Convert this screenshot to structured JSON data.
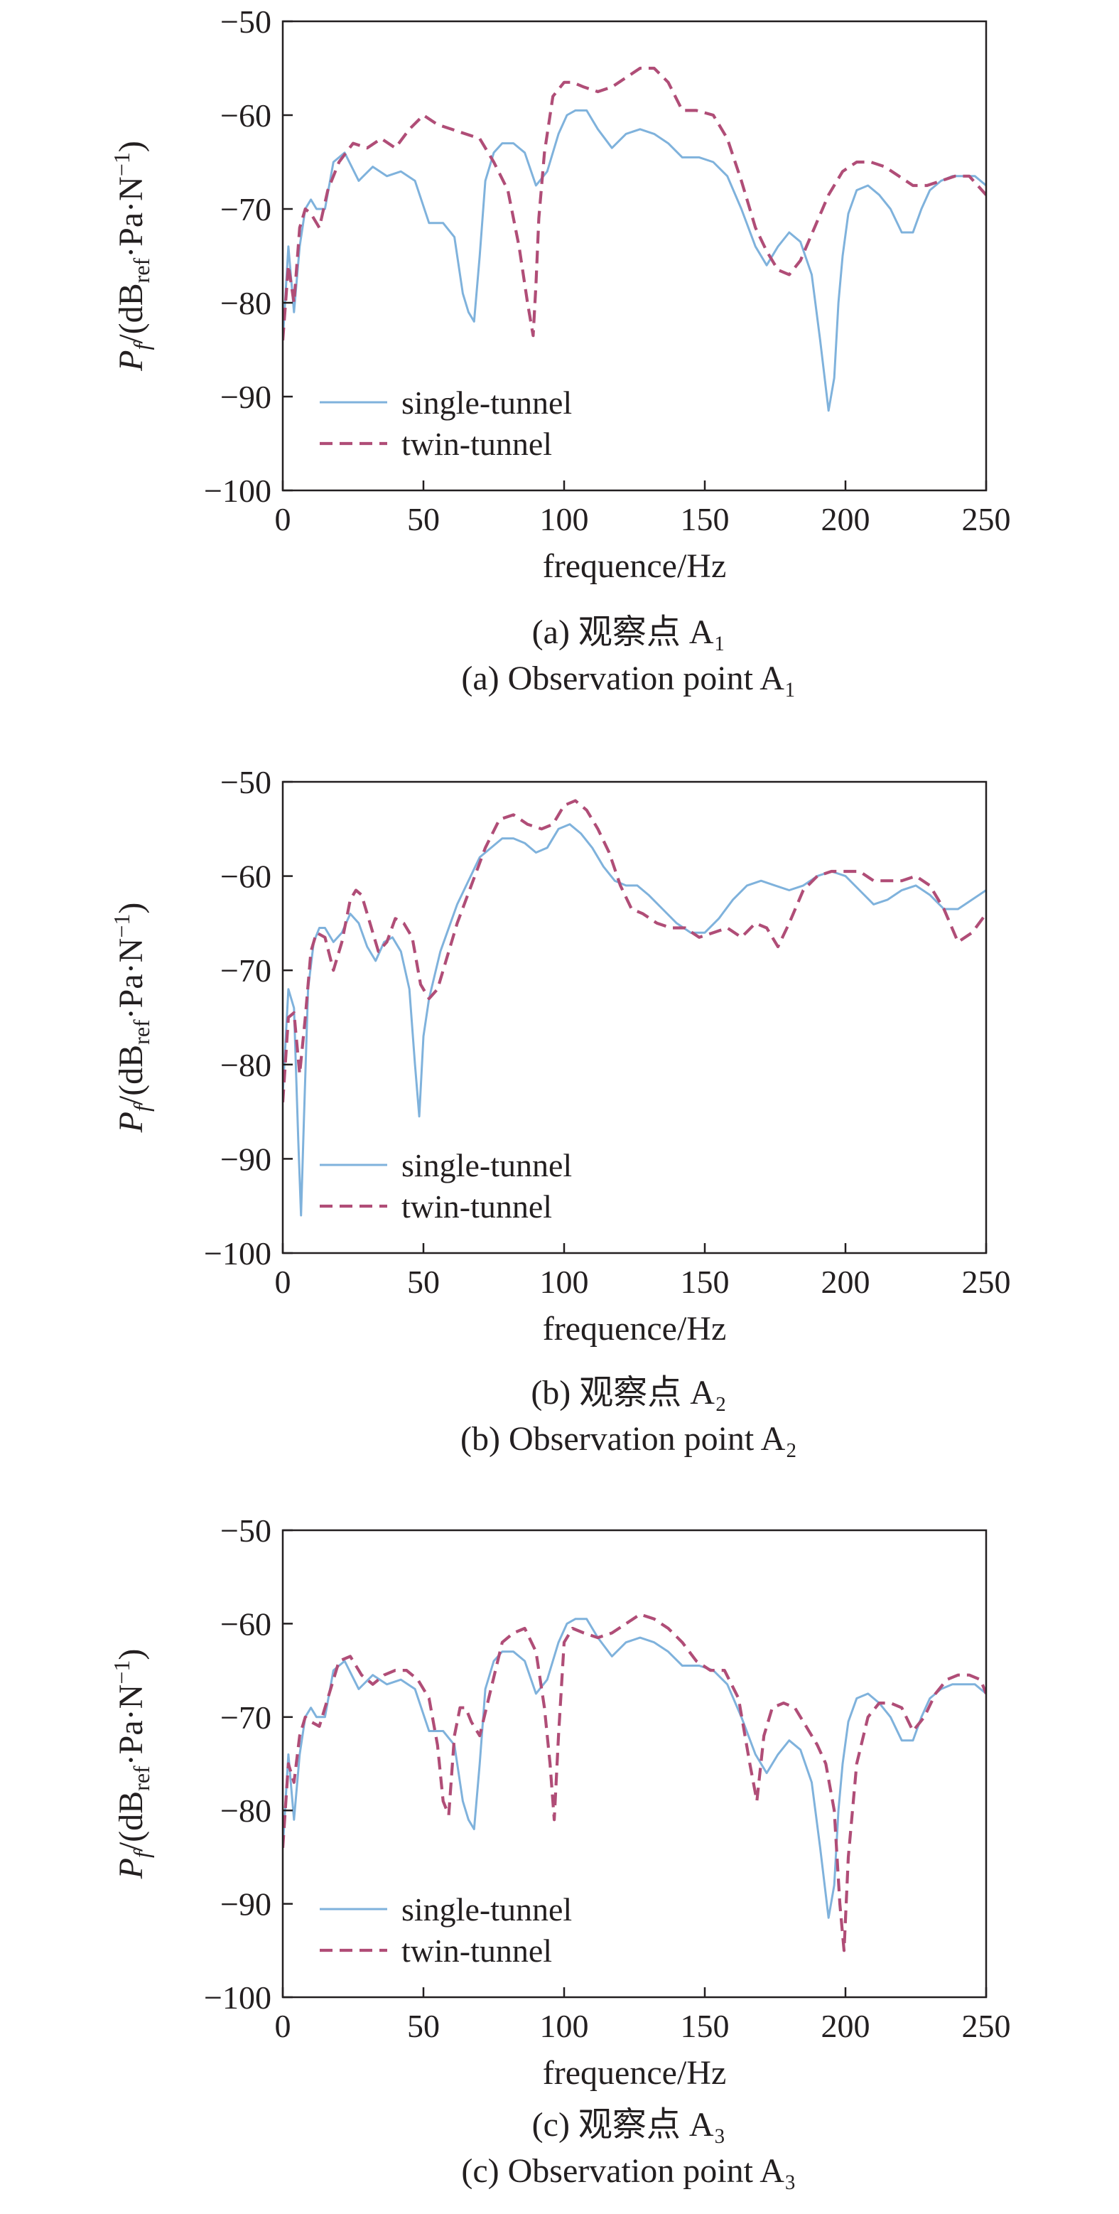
{
  "figure": {
    "panels": [
      {
        "caption_cn": "(a) 观察点 A₁",
        "caption_en": "(a) Observation point A₁"
      },
      {
        "caption_cn": "(b) 观察点 A₂",
        "caption_en": "(b) Observation point A₂"
      },
      {
        "caption_cn": "(c) 观察点 A₃",
        "caption_en": "(c) Observation point A₃"
      }
    ]
  },
  "colors": {
    "single": "#7fb2dc",
    "twin": "#b04d77",
    "axis": "#231f20"
  },
  "chart_data": [
    {
      "type": "line",
      "xlabel": "frequence/Hz",
      "ylabel": "P_f/(dB_ref·Pa·N⁻¹)",
      "xlim": [
        0,
        250
      ],
      "ylim": [
        -100,
        -50
      ],
      "xticks": [
        "0",
        "50",
        "100",
        "150",
        "200",
        "250"
      ],
      "yticks": [
        "−50",
        "−60",
        "−70",
        "−80",
        "−90",
        "−100"
      ],
      "grid": false,
      "legend_position": "lower-left",
      "series": [
        {
          "name": "single-tunnel",
          "style": "solid",
          "x": [
            0,
            2,
            4,
            6,
            8,
            10,
            12,
            15,
            18,
            22,
            27,
            32,
            37,
            42,
            47,
            52,
            57,
            61,
            64,
            66,
            68,
            70,
            72,
            75,
            78,
            82,
            86,
            90,
            94,
            98,
            101,
            104,
            108,
            112,
            117,
            122,
            127,
            132,
            137,
            142,
            148,
            153,
            158,
            163,
            168,
            172,
            176,
            180,
            184,
            188,
            191,
            194,
            196,
            197.5,
            199,
            201,
            204,
            208,
            212,
            216,
            220,
            224,
            227,
            230,
            234,
            238,
            242,
            246,
            250
          ],
          "y": [
            -84,
            -74,
            -81,
            -74,
            -70,
            -69,
            -70,
            -70,
            -65,
            -64,
            -67,
            -65.5,
            -66.5,
            -66,
            -67,
            -71.5,
            -71.5,
            -73,
            -79,
            -81,
            -82,
            -75,
            -67,
            -64,
            -63,
            -63,
            -64,
            -67.5,
            -66,
            -62,
            -60,
            -59.5,
            -59.5,
            -61.5,
            -63.5,
            -62,
            -61.5,
            -62,
            -63,
            -64.5,
            -64.5,
            -65,
            -66.5,
            -70,
            -74,
            -76,
            -74,
            -72.5,
            -73.5,
            -77,
            -84,
            -91.5,
            -88,
            -80,
            -75,
            -70.5,
            -68,
            -67.5,
            -68.5,
            -70,
            -72.5,
            -72.5,
            -70,
            -68,
            -67,
            -66.5,
            -66.5,
            -66.5,
            -67.5
          ]
        },
        {
          "name": "twin-tunnel",
          "style": "dashed",
          "x": [
            0,
            2,
            4,
            6,
            8,
            10,
            13,
            16,
            20,
            25,
            30,
            35,
            40,
            45,
            50,
            55,
            60,
            70,
            75,
            80,
            84,
            87,
            89,
            90,
            91,
            93,
            96,
            100,
            103,
            107,
            112,
            117,
            122,
            127,
            132,
            137,
            142,
            147,
            153,
            158,
            163,
            168,
            172,
            176,
            180,
            184,
            189,
            194,
            199,
            204,
            209,
            214,
            219,
            224,
            229,
            234,
            239,
            244,
            250
          ],
          "y": [
            -84,
            -76,
            -80,
            -72,
            -70,
            -70.5,
            -72,
            -68,
            -65,
            -63,
            -63.5,
            -62.5,
            -63.5,
            -61.5,
            -60,
            -61,
            -61.5,
            -62.5,
            -65,
            -68,
            -74,
            -80,
            -83.5,
            -78,
            -71,
            -64,
            -58,
            -56.5,
            -56.5,
            -57,
            -57.5,
            -57,
            -56,
            -55,
            -55,
            -56.5,
            -59.5,
            -59.5,
            -60,
            -62.5,
            -67,
            -72,
            -74.5,
            -76.5,
            -77,
            -75.5,
            -72,
            -68.5,
            -66,
            -65,
            -65,
            -65.5,
            -66.5,
            -67.5,
            -67.5,
            -67,
            -66.5,
            -66.5,
            -68.5
          ]
        }
      ]
    },
    {
      "type": "line",
      "xlabel": "frequence/Hz",
      "ylabel": "P_f/(dB_ref·Pa·N⁻¹)",
      "xlim": [
        0,
        250
      ],
      "ylim": [
        -100,
        -50
      ],
      "xticks": [
        "0",
        "50",
        "100",
        "150",
        "200",
        "250"
      ],
      "yticks": [
        "−50",
        "−60",
        "−70",
        "−80",
        "−90",
        "−100"
      ],
      "grid": false,
      "legend_position": "lower-left",
      "series": [
        {
          "name": "single-tunnel",
          "style": "solid",
          "x": [
            0,
            2,
            4,
            5.5,
            6.5,
            7.5,
            9,
            11,
            13,
            15,
            18,
            21,
            24,
            27,
            30,
            33,
            36,
            39,
            42,
            45,
            47,
            48.5,
            50,
            52,
            56,
            62,
            70,
            78,
            82,
            86,
            90,
            94,
            98,
            102,
            106,
            110,
            114,
            118,
            122,
            126,
            130,
            135,
            140,
            145,
            150,
            155,
            160,
            165,
            170,
            175,
            180,
            185,
            190,
            195,
            200,
            205,
            210,
            215,
            220,
            225,
            230,
            235,
            240,
            245,
            250
          ],
          "y": [
            -83,
            -72,
            -74,
            -88,
            -96,
            -86,
            -72,
            -67,
            -65.5,
            -65.5,
            -67,
            -66,
            -64,
            -65,
            -67.5,
            -69,
            -67,
            -66.5,
            -68,
            -72,
            -80,
            -85.5,
            -77,
            -73,
            -68,
            -63,
            -58,
            -56,
            -56,
            -56.5,
            -57.5,
            -57,
            -55,
            -54.5,
            -55.5,
            -57,
            -59,
            -60.5,
            -61,
            -61,
            -62,
            -63.5,
            -65,
            -66,
            -66,
            -64.5,
            -62.5,
            -61,
            -60.5,
            -61,
            -61.5,
            -61,
            -60,
            -59.5,
            -60,
            -61.5,
            -63,
            -62.5,
            -61.5,
            -61,
            -62,
            -63.5,
            -63.5,
            -62.5,
            -61.5
          ]
        },
        {
          "name": "twin-tunnel",
          "style": "dashed",
          "x": [
            0,
            2,
            4,
            6,
            8,
            10,
            12,
            15,
            18,
            21,
            24,
            26,
            28,
            31,
            34,
            37,
            40,
            43,
            46,
            49,
            52,
            55,
            58,
            62,
            67,
            72,
            77,
            82,
            87,
            92,
            96,
            100,
            104,
            108,
            112,
            116,
            120,
            124,
            128,
            133,
            138,
            143,
            148,
            153,
            158,
            163,
            168,
            172,
            176,
            180,
            185,
            190,
            195,
            200,
            205,
            210,
            215,
            220,
            225,
            230,
            235,
            240,
            245,
            250
          ],
          "y": [
            -84,
            -75,
            -74.5,
            -81,
            -75,
            -68,
            -66,
            -66.5,
            -70,
            -67,
            -62.5,
            -61.5,
            -62,
            -65,
            -68,
            -67,
            -64.5,
            -65,
            -66.5,
            -71.5,
            -73,
            -72,
            -69,
            -65,
            -61,
            -57,
            -54,
            -53.5,
            -54.5,
            -55,
            -54.5,
            -52.5,
            -52,
            -53,
            -55,
            -57.5,
            -61,
            -63.5,
            -64,
            -65,
            -65.5,
            -65.5,
            -66.5,
            -66,
            -65.5,
            -66.5,
            -65,
            -65.5,
            -67.5,
            -65,
            -61.5,
            -60,
            -59.5,
            -59.5,
            -59.5,
            -60.5,
            -60.5,
            -60.5,
            -60,
            -61,
            -63.5,
            -67,
            -66,
            -64
          ]
        }
      ]
    },
    {
      "type": "line",
      "xlabel": "frequence/Hz",
      "ylabel": "P_f/(dB_ref·Pa·N⁻¹)",
      "xlim": [
        0,
        250
      ],
      "ylim": [
        -100,
        -50
      ],
      "xticks": [
        "0",
        "50",
        "100",
        "150",
        "200",
        "250"
      ],
      "yticks": [
        "−50",
        "−60",
        "−70",
        "−80",
        "−90",
        "−100"
      ],
      "grid": false,
      "legend_position": "lower-left",
      "series": [
        {
          "name": "single-tunnel",
          "style": "solid",
          "x": [
            0,
            2,
            4,
            6,
            8,
            10,
            12,
            15,
            18,
            22,
            27,
            32,
            37,
            42,
            47,
            52,
            57,
            61,
            64,
            66,
            68,
            70,
            72,
            75,
            78,
            82,
            86,
            90,
            94,
            98,
            101,
            104,
            108,
            112,
            117,
            122,
            127,
            132,
            137,
            142,
            148,
            153,
            158,
            163,
            168,
            172,
            176,
            180,
            184,
            188,
            191,
            194,
            196,
            197.5,
            199,
            201,
            204,
            208,
            212,
            216,
            220,
            224,
            227,
            230,
            234,
            238,
            242,
            246,
            250
          ],
          "y": [
            -84,
            -74,
            -81,
            -74,
            -70,
            -69,
            -70,
            -70,
            -65,
            -64,
            -67,
            -65.5,
            -66.5,
            -66,
            -67,
            -71.5,
            -71.5,
            -73,
            -79,
            -81,
            -82,
            -75,
            -67,
            -64,
            -63,
            -63,
            -64,
            -67.5,
            -66,
            -62,
            -60,
            -59.5,
            -59.5,
            -61.5,
            -63.5,
            -62,
            -61.5,
            -62,
            -63,
            -64.5,
            -64.5,
            -65,
            -66.5,
            -70,
            -74,
            -76,
            -74,
            -72.5,
            -73.5,
            -77,
            -84,
            -91.5,
            -88,
            -80,
            -75,
            -70.5,
            -68,
            -67.5,
            -68.5,
            -70,
            -72.5,
            -72.5,
            -70,
            -68,
            -67,
            -66.5,
            -66.5,
            -66.5,
            -67.5
          ]
        },
        {
          "name": "twin-tunnel",
          "style": "dashed",
          "x": [
            0,
            2,
            4,
            6,
            8,
            10,
            13,
            16,
            20,
            24,
            28,
            32,
            36,
            40,
            44,
            48,
            52,
            55,
            57,
            59,
            61,
            63,
            65,
            67,
            70,
            74,
            78,
            82,
            86,
            90,
            93,
            95,
            96.5,
            98,
            100,
            103,
            107,
            112,
            117,
            122,
            127,
            132,
            137,
            142,
            147,
            152,
            157,
            162,
            166,
            168.5,
            171,
            174,
            178,
            182,
            186,
            190,
            193,
            196,
            198,
            199.5,
            201,
            204,
            208,
            212,
            216,
            220,
            224,
            228,
            232,
            236,
            240,
            244,
            248,
            250
          ],
          "y": [
            -84,
            -75,
            -77,
            -72,
            -70,
            -70.5,
            -71,
            -68,
            -64,
            -63.5,
            -65.5,
            -66.5,
            -65.5,
            -65,
            -65,
            -66,
            -68,
            -73,
            -79,
            -80.5,
            -72,
            -69,
            -69,
            -70.5,
            -72,
            -67,
            -62,
            -61,
            -60.5,
            -63,
            -69,
            -75,
            -81,
            -72,
            -62,
            -60.5,
            -61,
            -61.5,
            -61,
            -60,
            -59,
            -59.5,
            -60.5,
            -62,
            -64,
            -65,
            -65,
            -68,
            -75,
            -79,
            -72,
            -69,
            -68.5,
            -69,
            -71,
            -73,
            -75,
            -80,
            -90,
            -95,
            -85,
            -75,
            -70,
            -68.5,
            -68.5,
            -69,
            -71.5,
            -70,
            -67.5,
            -66,
            -65.5,
            -65.5,
            -66,
            -67.5
          ]
        }
      ]
    }
  ]
}
